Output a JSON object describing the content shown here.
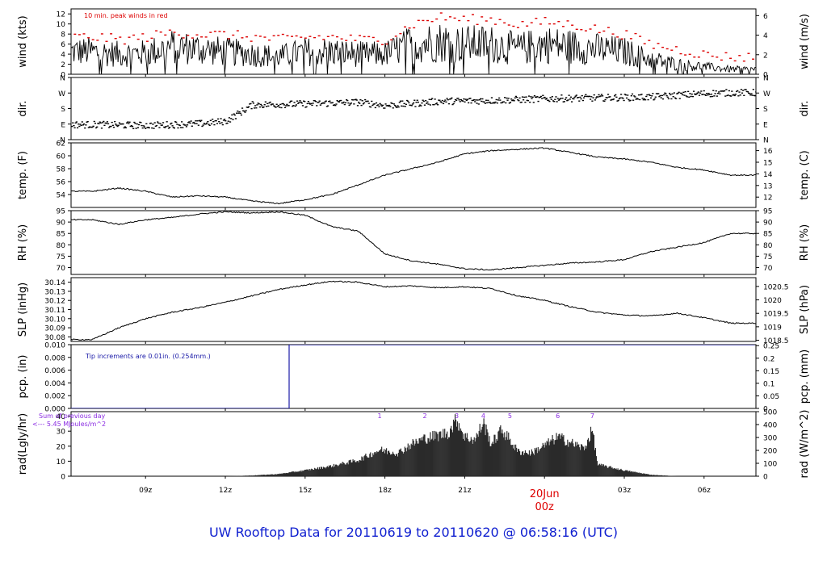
{
  "title": "UW Rooftop Data for 20110619  to  20110620 @ 06:58:16  (UTC)",
  "colors": {
    "peak": "#dd0000",
    "trace": "#000000",
    "precip": "#1a1aa8",
    "annot_blue": "#1a1aa8",
    "purple": "#8a2be2",
    "date_red": "#dd0000",
    "title_blue": "#1020d0"
  },
  "x_axis": {
    "ticks": [
      "09z",
      "12z",
      "15z",
      "18z",
      "21z",
      "00z",
      "03z",
      "06z"
    ],
    "date_label_1": "20Jun",
    "date_label_2": "00z"
  },
  "chart_data": [
    {
      "type": "line",
      "id": "wind",
      "ylabel_left": "wind (kts)",
      "ylabel_right": "wind (m/s)",
      "left_ticks": [
        "0",
        "2",
        "4",
        "6",
        "8",
        "10",
        "12"
      ],
      "right_ticks": [
        "0",
        "2",
        "4",
        "6"
      ],
      "ylim": [
        0,
        13
      ],
      "annotation": "10 min. peak winds in red",
      "series": [
        {
          "x": [
            7,
            8,
            9,
            10,
            11,
            12,
            13,
            14,
            15,
            16,
            17,
            18,
            19,
            20,
            21,
            22,
            23,
            24,
            25,
            26,
            27,
            28,
            29,
            30,
            31
          ],
          "values": [
            4.5,
            4,
            4.2,
            5.5,
            5,
            4.5,
            4,
            3.5,
            4.5,
            4.5,
            4,
            4,
            6,
            6.5,
            6,
            6,
            5,
            6,
            5.5,
            5,
            4.5,
            3,
            2,
            1.5,
            1
          ]
        },
        {
          "x": [
            7,
            8,
            9,
            10,
            11,
            12,
            13,
            14,
            15,
            16,
            17,
            18,
            19,
            20,
            21,
            22,
            23,
            24,
            25,
            26,
            27,
            28,
            29,
            30,
            31
          ],
          "values": [
            7.5,
            7,
            7.5,
            8.5,
            8,
            8,
            7.5,
            7,
            7.5,
            7.5,
            7,
            7,
            10,
            11.5,
            11,
            11,
            10,
            10.5,
            10,
            9,
            8,
            6,
            5,
            4,
            3.5
          ]
        }
      ]
    },
    {
      "type": "scatter",
      "id": "dir",
      "ylabel_left": "dir.",
      "ylabel_right": "dir.",
      "left_ticks": [
        "N",
        "E",
        "S",
        "W",
        "N"
      ],
      "right_ticks": [
        "N",
        "E",
        "S",
        "W",
        "N"
      ],
      "ylim": [
        0,
        360
      ],
      "series": [
        {
          "x": [
            7,
            9,
            11,
            12,
            13,
            15,
            17,
            18,
            20,
            22,
            24,
            26,
            28,
            30,
            31
          ],
          "values": [
            90,
            85,
            95,
            110,
            205,
            210,
            220,
            200,
            225,
            230,
            240,
            245,
            250,
            270,
            275
          ]
        }
      ]
    },
    {
      "type": "line",
      "id": "temp",
      "ylabel_left": "temp. (F)",
      "ylabel_right": "temp. (C)",
      "left_ticks": [
        "54",
        "56",
        "58",
        "60",
        "62"
      ],
      "right_ticks": [
        "12",
        "13",
        "14",
        "15",
        "16"
      ],
      "ylim": [
        52,
        62
      ],
      "series": [
        {
          "x": [
            7,
            8,
            9,
            10,
            11,
            12,
            13,
            14,
            15,
            16,
            17,
            18,
            19,
            20,
            21,
            22,
            23,
            24,
            25,
            26,
            27,
            28,
            29,
            30,
            31
          ],
          "values": [
            54.5,
            55,
            54.5,
            53.6,
            53.8,
            53.6,
            53,
            52.6,
            53.2,
            54,
            55.5,
            57,
            58,
            59,
            60.3,
            60.8,
            61,
            61.2,
            60.5,
            59.8,
            59.5,
            59,
            58.2,
            57.8,
            57
          ]
        }
      ]
    },
    {
      "type": "line",
      "id": "rh",
      "ylabel_left": "RH (%)",
      "ylabel_right": "RH (%)",
      "left_ticks": [
        "70",
        "75",
        "80",
        "85",
        "90",
        "95"
      ],
      "right_ticks": [
        "70",
        "75",
        "80",
        "85",
        "90",
        "95"
      ],
      "ylim": [
        67,
        95
      ],
      "series": [
        {
          "x": [
            7,
            8,
            9,
            10,
            11,
            12,
            13,
            14,
            15,
            16,
            17,
            18,
            19,
            20,
            21,
            22,
            23,
            24,
            25,
            26,
            27,
            28,
            29,
            30,
            31
          ],
          "values": [
            91,
            89,
            91,
            92,
            93.5,
            94.5,
            94,
            94.5,
            93,
            88,
            86,
            76,
            73,
            71.5,
            69.5,
            69,
            70,
            71,
            72,
            72.5,
            73.5,
            77,
            79,
            81,
            85
          ]
        }
      ]
    },
    {
      "type": "line",
      "id": "slp",
      "ylabel_left": "SLP (inHg)",
      "ylabel_right": "SLP (hPa)",
      "left_ticks": [
        "30.08",
        "30.09",
        "30.10",
        "30.11",
        "30.12",
        "30.13",
        "30.14"
      ],
      "right_ticks": [
        "1018.5",
        "1019",
        "1019.5",
        "1020",
        "1020.5"
      ],
      "ylim": [
        30.075,
        30.145
      ],
      "series": [
        {
          "x": [
            7,
            8,
            9,
            10,
            11,
            12,
            13,
            14,
            15,
            16,
            17,
            18,
            19,
            20,
            21,
            22,
            23,
            24,
            25,
            26,
            27,
            28,
            29,
            30,
            31
          ],
          "values": [
            30.077,
            30.09,
            30.1,
            30.107,
            30.112,
            30.118,
            30.125,
            30.132,
            30.137,
            30.141,
            30.14,
            30.135,
            30.136,
            30.134,
            30.135,
            30.133,
            30.125,
            30.12,
            30.113,
            30.107,
            30.104,
            30.103,
            30.106,
            30.101,
            30.095
          ]
        }
      ]
    },
    {
      "type": "line",
      "id": "pcp",
      "ylabel_left": "pcp. (in)",
      "ylabel_right": "pcp. (mm)",
      "left_ticks": [
        "0.000",
        "0.002",
        "0.004",
        "0.006",
        "0.008",
        "0.010"
      ],
      "right_ticks": [
        "0",
        "0.05",
        "0.1",
        "0.15",
        "0.2",
        "0.25"
      ],
      "ylim": [
        0,
        0.01
      ],
      "annotation": "Tip increments are 0.01in. (0.254mm.)",
      "series": [
        {
          "x": [
            6.2,
            14.4,
            14.4,
            31.9
          ],
          "values": [
            0,
            0,
            0.01,
            0.01
          ]
        }
      ]
    },
    {
      "type": "area",
      "id": "rad",
      "ylabel_left": "rad(Lgly/hr)",
      "ylabel_right": "rad (W/m^2)",
      "left_ticks": [
        "0",
        "10",
        "20",
        "30",
        "40"
      ],
      "right_ticks": [
        "0",
        "100",
        "200",
        "300",
        "400",
        "500"
      ],
      "ylim": [
        0,
        43
      ],
      "annotation_1": "Sum of previous day",
      "annotation_2": "<--- 5.45 MJoules/m^2",
      "peak_labels": [
        "1",
        "2",
        "3",
        "4",
        "5",
        "6",
        "7"
      ],
      "peak_x": [
        17.8,
        19.5,
        20.7,
        21.7,
        22.7,
        24.5,
        25.8
      ],
      "series": [
        {
          "x": [
            12,
            13,
            14,
            15,
            16,
            17,
            17.8,
            18.5,
            19,
            19.5,
            20,
            20.4,
            20.7,
            21,
            21.4,
            21.7,
            22,
            22.4,
            22.7,
            23,
            23.5,
            24,
            24.5,
            25,
            25.5,
            25.8,
            26,
            27,
            28,
            29
          ],
          "values": [
            0,
            0.5,
            1.5,
            4,
            7,
            11,
            18,
            16,
            22,
            26,
            28,
            30,
            39,
            27,
            25,
            37,
            22,
            32,
            25,
            17,
            16,
            21,
            27,
            23,
            19,
            32,
            8,
            4,
            1,
            0
          ]
        }
      ]
    }
  ]
}
